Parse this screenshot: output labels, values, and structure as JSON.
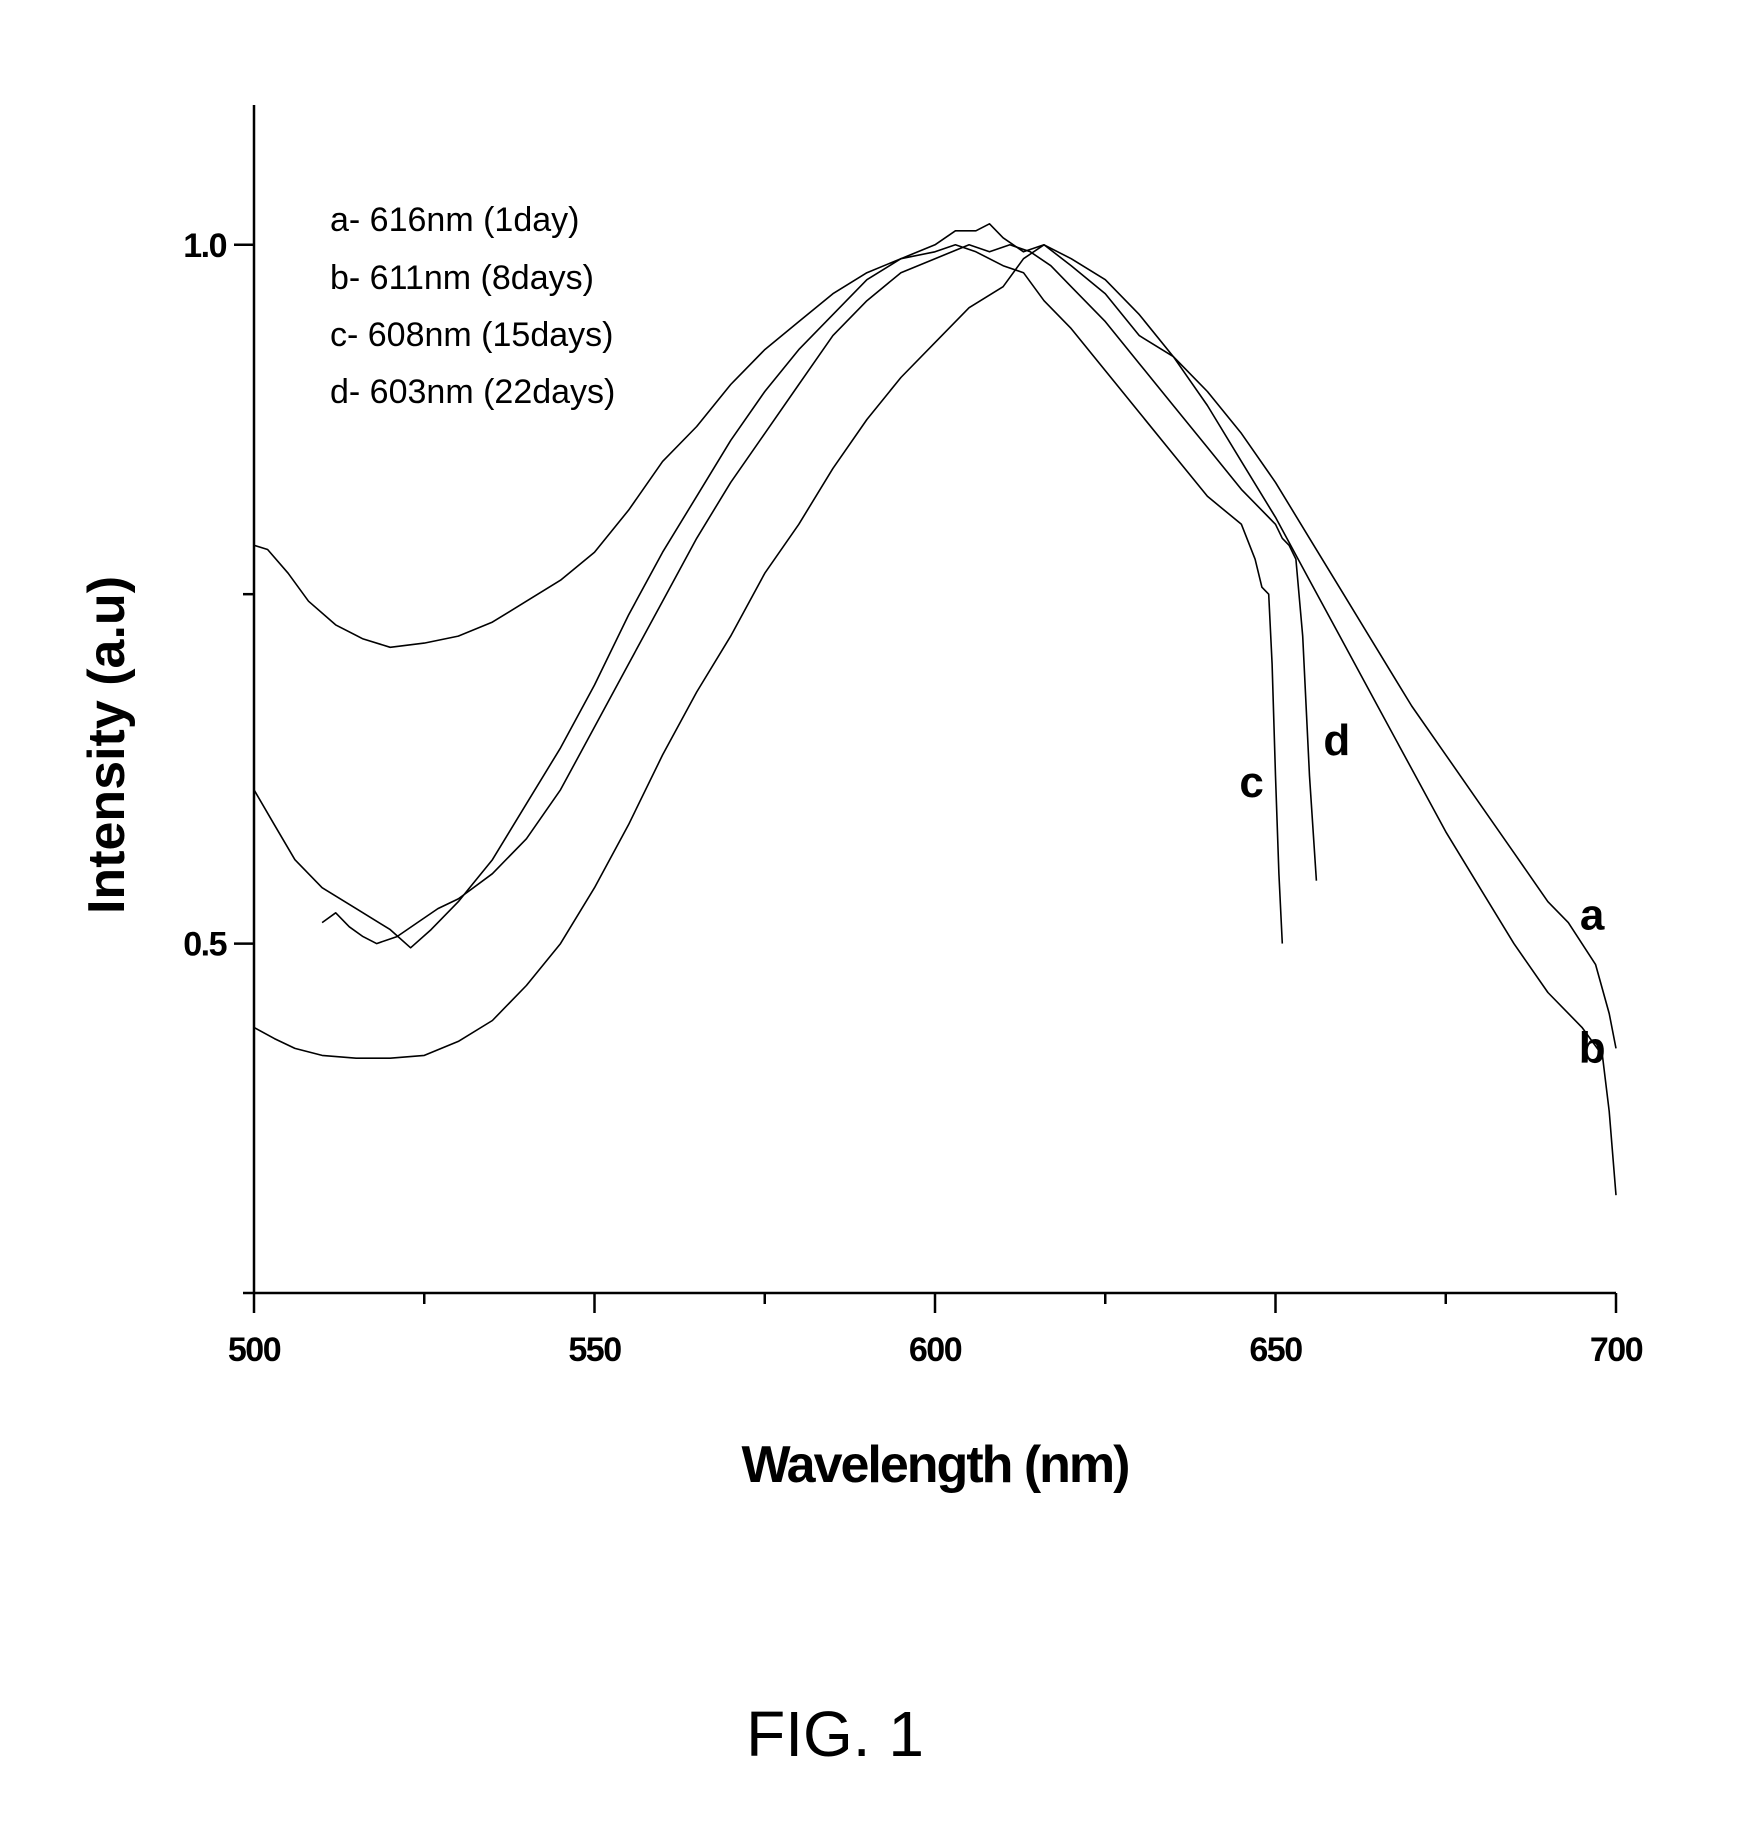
{
  "chart_data": {
    "type": "line",
    "xlabel": "Wavelength (nm)",
    "ylabel": "Intensity (a.u)",
    "xlim": [
      500,
      700
    ],
    "ylim": [
      0.25,
      1.1
    ],
    "x_ticks": [
      "500",
      "550",
      "600",
      "650",
      "700"
    ],
    "y_ticks": [
      "0.5",
      "1.0"
    ],
    "grid": false,
    "legend": {
      "placement": "top-left",
      "entries": [
        "a- 616nm (1day)",
        "b- 611nm (8days)",
        "c- 608nm (15days)",
        "d- 603nm (22days)"
      ]
    },
    "series": [
      {
        "name": "a",
        "x": [
          500,
          502,
          505,
          508,
          512,
          516,
          520,
          525,
          530,
          535,
          540,
          545,
          550,
          555,
          560,
          565,
          570,
          575,
          580,
          585,
          590,
          595,
          600,
          603,
          606,
          608,
          610,
          613,
          616,
          620,
          625,
          630,
          635,
          640,
          645,
          650,
          655,
          660,
          665,
          670,
          675,
          680,
          685,
          690,
          693,
          697,
          699,
          700
        ],
        "y": [
          0.785,
          0.782,
          0.765,
          0.745,
          0.728,
          0.718,
          0.712,
          0.715,
          0.72,
          0.73,
          0.745,
          0.76,
          0.78,
          0.81,
          0.845,
          0.87,
          0.9,
          0.925,
          0.945,
          0.965,
          0.98,
          0.99,
          1.0,
          1.01,
          1.01,
          1.015,
          1.005,
          0.995,
          1.0,
          0.985,
          0.965,
          0.935,
          0.92,
          0.895,
          0.865,
          0.83,
          0.79,
          0.75,
          0.71,
          0.67,
          0.635,
          0.6,
          0.565,
          0.53,
          0.515,
          0.485,
          0.45,
          0.425
        ]
      },
      {
        "name": "b",
        "x": [
          500,
          503,
          506,
          510,
          515,
          520,
          525,
          530,
          535,
          540,
          545,
          550,
          555,
          560,
          565,
          570,
          575,
          580,
          585,
          590,
          595,
          600,
          605,
          610,
          613,
          616,
          620,
          625,
          630,
          635,
          640,
          645,
          650,
          655,
          660,
          665,
          670,
          675,
          680,
          685,
          690,
          695,
          698,
          699,
          700
        ],
        "y": [
          0.44,
          0.432,
          0.425,
          0.42,
          0.418,
          0.418,
          0.42,
          0.43,
          0.445,
          0.47,
          0.5,
          0.54,
          0.585,
          0.635,
          0.68,
          0.72,
          0.765,
          0.8,
          0.84,
          0.875,
          0.905,
          0.93,
          0.955,
          0.97,
          0.99,
          1.0,
          0.99,
          0.975,
          0.95,
          0.92,
          0.885,
          0.845,
          0.805,
          0.76,
          0.715,
          0.67,
          0.625,
          0.58,
          0.54,
          0.5,
          0.465,
          0.44,
          0.42,
          0.38,
          0.32
        ]
      },
      {
        "name": "c",
        "x": [
          500,
          503,
          506,
          510,
          515,
          520,
          523,
          526,
          530,
          535,
          540,
          545,
          550,
          555,
          560,
          565,
          570,
          575,
          580,
          585,
          590,
          595,
          600,
          603,
          606,
          610,
          613,
          616,
          620,
          625,
          630,
          635,
          640,
          645,
          647,
          648,
          649,
          649.5,
          650,
          650.5,
          651
        ],
        "y": [
          0.61,
          0.585,
          0.56,
          0.54,
          0.525,
          0.51,
          0.497,
          0.51,
          0.53,
          0.56,
          0.6,
          0.64,
          0.685,
          0.735,
          0.78,
          0.82,
          0.86,
          0.895,
          0.925,
          0.95,
          0.975,
          0.99,
          0.995,
          1.0,
          0.995,
          0.985,
          0.98,
          0.96,
          0.94,
          0.91,
          0.88,
          0.85,
          0.82,
          0.8,
          0.775,
          0.755,
          0.75,
          0.7,
          0.62,
          0.55,
          0.5
        ]
      },
      {
        "name": "d",
        "x": [
          510,
          512,
          514,
          516,
          518,
          521,
          524,
          527,
          530,
          535,
          540,
          545,
          550,
          555,
          560,
          565,
          570,
          575,
          580,
          585,
          590,
          595,
          600,
          605,
          608,
          611,
          614,
          617,
          620,
          625,
          630,
          635,
          640,
          645,
          650,
          651,
          652,
          653,
          654,
          655,
          656
        ],
        "y": [
          0.515,
          0.522,
          0.512,
          0.505,
          0.5,
          0.505,
          0.515,
          0.525,
          0.532,
          0.55,
          0.575,
          0.61,
          0.655,
          0.7,
          0.745,
          0.79,
          0.83,
          0.865,
          0.9,
          0.935,
          0.96,
          0.98,
          0.99,
          1.0,
          0.995,
          1.0,
          0.995,
          0.985,
          0.97,
          0.945,
          0.915,
          0.885,
          0.855,
          0.825,
          0.8,
          0.79,
          0.785,
          0.775,
          0.72,
          0.62,
          0.545
        ]
      }
    ],
    "annotations": [
      {
        "text": "a",
        "x": 696.5,
        "y": 0.51
      },
      {
        "text": "b",
        "x": 696.5,
        "y": 0.415
      },
      {
        "text": "c",
        "x": 646.5,
        "y": 0.605
      },
      {
        "text": "d",
        "x": 659,
        "y": 0.635
      }
    ],
    "line_color": "#000000"
  },
  "caption": "FIG. 1"
}
